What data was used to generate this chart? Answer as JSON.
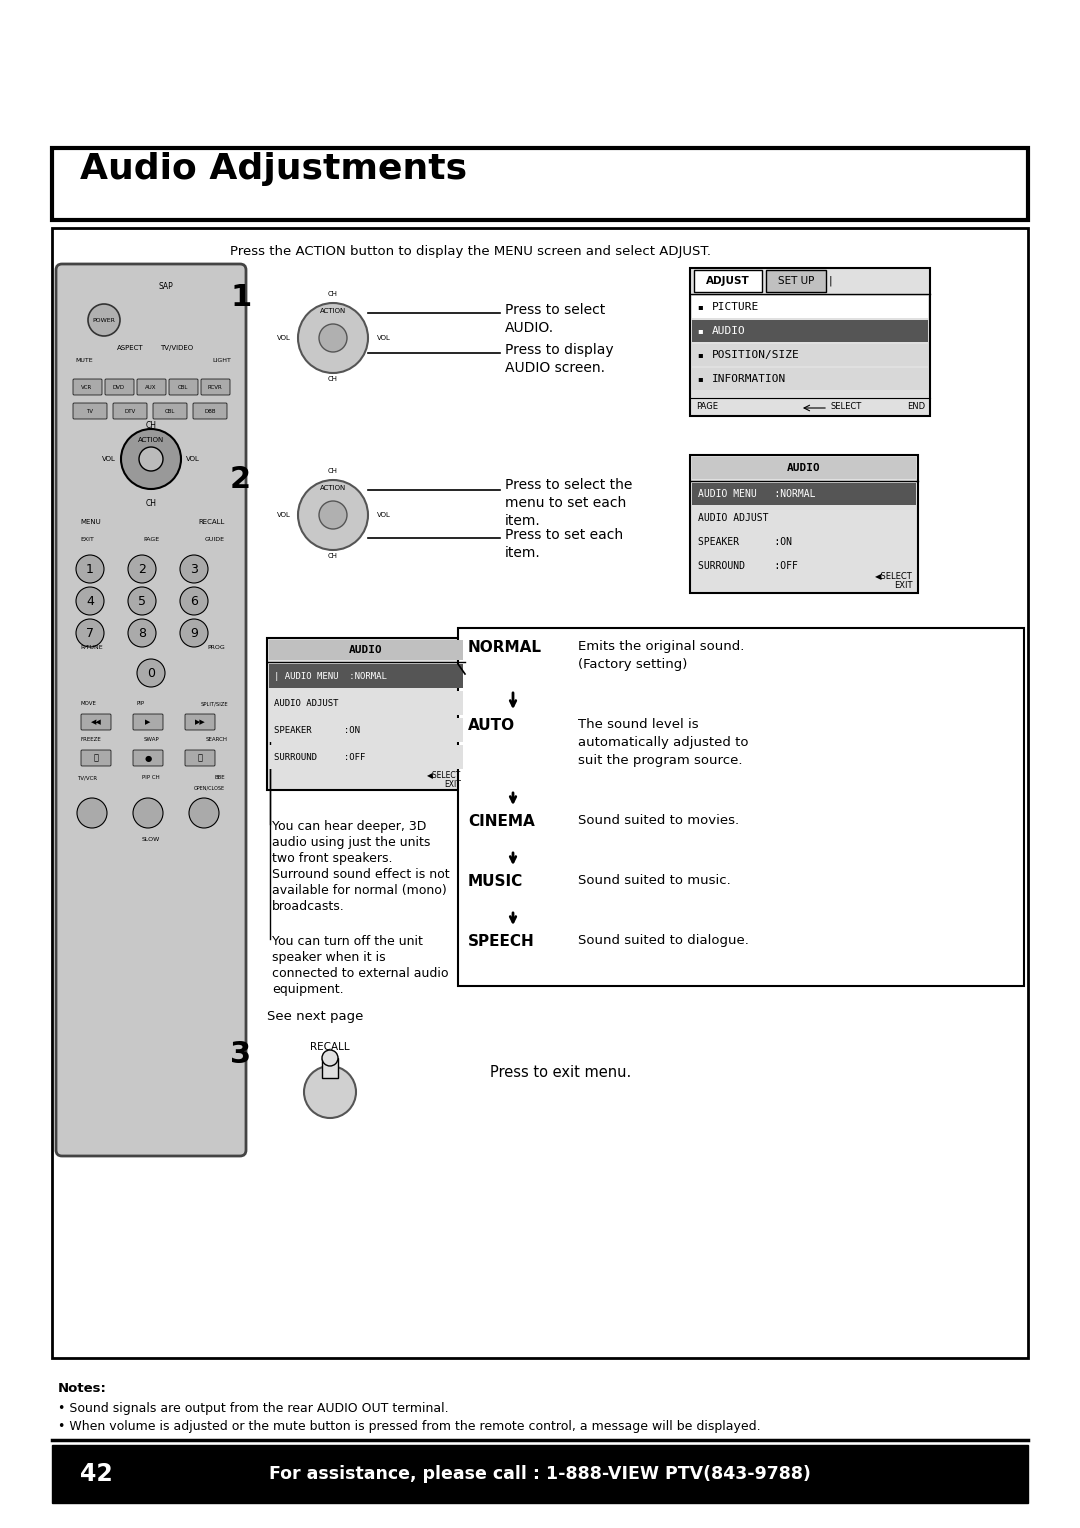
{
  "title": "Audio Adjustments",
  "bg_color": "#ffffff",
  "top_instruction": "Press the ACTION button to display the MENU screen and select ADJUST.",
  "step1_label": "1",
  "step1_text1": "Press to select",
  "step1_text2": "AUDIO.",
  "step1_text3": "Press to display",
  "step1_text4": "AUDIO screen.",
  "step2_label": "2",
  "step2_text1": "Press to select the",
  "step2_text2": "menu to set each",
  "step2_text3": "item.",
  "step2_text4": "Press to set each",
  "step2_text5": "item.",
  "step3_label": "3",
  "step3_text": "Press to exit menu.",
  "see_next": "See next page",
  "adjust_items": [
    "PICTURE",
    "AUDIO",
    "POSITION/SIZE",
    "INFORMATION"
  ],
  "audio_menu_items": [
    "AUDIO MENU   :NORMAL",
    "AUDIO ADJUST",
    "SPEAKER      :ON",
    "SURROUND     :OFF"
  ],
  "normal_label": "NORMAL",
  "normal_desc1": "Emits the original sound.",
  "normal_desc2": "(Factory setting)",
  "auto_label": "AUTO",
  "auto_desc1": "The sound level is",
  "auto_desc2": "automatically adjusted to",
  "auto_desc3": "suit the program source.",
  "cinema_label": "CINEMA",
  "cinema_desc": "Sound suited to movies.",
  "music_label": "MUSIC",
  "music_desc": "Sound suited to music.",
  "speech_label": "SPEECH",
  "speech_desc": "Sound suited to dialogue.",
  "surround_note1": "You can hear deeper, 3D",
  "surround_note2": "audio using just the units",
  "surround_note3": "two front speakers.",
  "surround_note4": "Surround sound effect is not",
  "surround_note5": "available for normal (mono)",
  "surround_note6": "broadcasts.",
  "speaker_note1": "You can turn off the unit",
  "speaker_note2": "speaker when it is",
  "speaker_note3": "connected to external audio",
  "speaker_note4": "equipment.",
  "notes_title": "Notes:",
  "note1": "• Sound signals are output from the rear AUDIO OUT terminal.",
  "note2": "• When volume is adjusted or the mute button is pressed from the remote control, a message will be displayed.",
  "footer_page": "42",
  "footer_text": "For assistance, please call : 1-888-VIEW PTV(843-9788)",
  "recall_label": "RECALL"
}
